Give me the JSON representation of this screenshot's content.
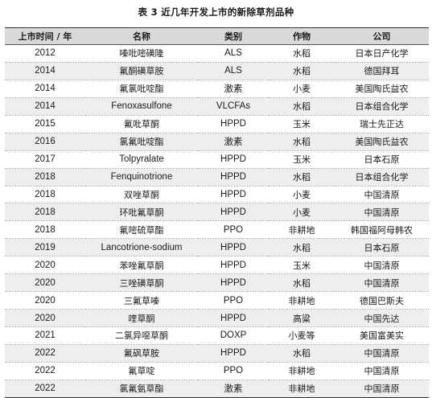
{
  "title": "表 3  近几年开发上市的新除草剂品种",
  "headers": {
    "year": "上市时间 / 年",
    "name": "名称",
    "category": "类别",
    "crop": "作物",
    "company": "公司"
  },
  "rows": [
    {
      "year": "2012",
      "name": "嗪吡嘧磺隆",
      "category": "ALS",
      "crop": "水稻",
      "company": "日本日产化学"
    },
    {
      "year": "2014",
      "name": "氟酮磺草胺",
      "category": "ALS",
      "crop": "水稻",
      "company": "德国拜耳"
    },
    {
      "year": "2014",
      "name": "氟氯吡啶酯",
      "category": "激素",
      "crop": "小麦",
      "company": "美国陶氏益农"
    },
    {
      "year": "2014",
      "name": "Fenoxasulfone",
      "category": "VLCFAs",
      "crop": "水稻",
      "company": "日本组合化学"
    },
    {
      "year": "2015",
      "name": "氟吡草酮",
      "category": "HPPD",
      "crop": "玉米",
      "company": "瑞士先正达"
    },
    {
      "year": "2016",
      "name": "氯氟吡啶酯",
      "category": "激素",
      "crop": "水稻",
      "company": "美国陶氏益农"
    },
    {
      "year": "2017",
      "name": "Tolpyralate",
      "category": "HPPD",
      "crop": "玉米",
      "company": "日本石原"
    },
    {
      "year": "2018",
      "name": "Fenquinotrione",
      "category": "HPPD",
      "crop": "水稻",
      "company": "日本组合化学"
    },
    {
      "year": "2018",
      "name": "双唑草酮",
      "category": "HPPD",
      "crop": "小麦",
      "company": "中国清原"
    },
    {
      "year": "2018",
      "name": "环吡氟草酮",
      "category": "HPPD",
      "crop": "小麦",
      "company": "中国清原"
    },
    {
      "year": "2018",
      "name": "氟嘧硫草酯",
      "category": "PPO",
      "crop": "非耕地",
      "company": "韩国福阿母韩农"
    },
    {
      "year": "2019",
      "name": "Lancotrione-sodium",
      "category": "HPPD",
      "crop": "水稻",
      "company": "日本石原"
    },
    {
      "year": "2020",
      "name": "苯唑氟草酮",
      "category": "HPPD",
      "crop": "玉米",
      "company": "中国清原"
    },
    {
      "year": "2020",
      "name": "三唑磺草酮",
      "category": "HPPD",
      "crop": "水稻",
      "company": "中国清原"
    },
    {
      "year": "2020",
      "name": "三氟草嗪",
      "category": "PPO",
      "crop": "非耕地",
      "company": "德国巴斯夫"
    },
    {
      "year": "2020",
      "name": "喹草酮",
      "category": "HPPD",
      "crop": "高粱",
      "company": "中国先达"
    },
    {
      "year": "2021",
      "name": "二氯异噁草酮",
      "category": "DOXP",
      "crop": "小麦等",
      "company": "美国富美实"
    },
    {
      "year": "2022",
      "name": "氟砜草胺",
      "category": "HPPD",
      "crop": "水稻",
      "company": "中国清原"
    },
    {
      "year": "2022",
      "name": "氟草啶",
      "category": "PPO",
      "crop": "非耕地",
      "company": "中国清原"
    },
    {
      "year": "2022",
      "name": "氯氟氨草酯",
      "category": "激素",
      "crop": "非耕地",
      "company": "中国清原"
    }
  ]
}
